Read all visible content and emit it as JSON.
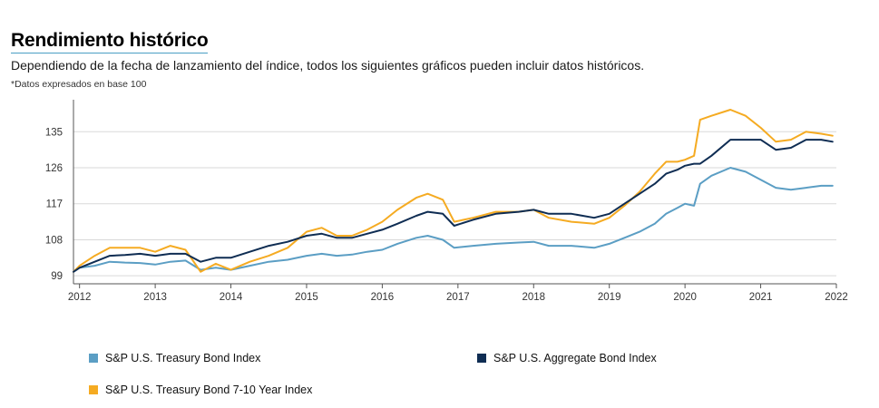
{
  "header": {
    "title": "Rendimiento histórico",
    "subtitle": "Dependiendo de la fecha de lanzamiento del índice, todos los siguientes gráficos pueden incluir datos históricos.",
    "note": "*Datos expresados en base 100"
  },
  "colors": {
    "treasury": "#5b9ec4",
    "aggregate": "#0f2d53",
    "treasury_7_10": "#f5ab22",
    "grid": "#d9d9d9",
    "axis": "#555555"
  },
  "chart_data": {
    "type": "line",
    "title": "Rendimiento histórico",
    "xlabel": "",
    "ylabel": "",
    "xlim": [
      2011.92,
      2022.0
    ],
    "ylim": [
      97,
      143
    ],
    "y_ticks": [
      99,
      108,
      117,
      126,
      135
    ],
    "x_ticks": [
      2012,
      2013,
      2014,
      2015,
      2016,
      2017,
      2018,
      2019,
      2020,
      2021,
      2022
    ],
    "grid": "horizontal",
    "legend_position": "bottom",
    "series": [
      {
        "name": "S&P U.S. Treasury Bond Index",
        "color": "#5b9ec4",
        "x": [
          2011.92,
          2012.0,
          2012.2,
          2012.4,
          2012.6,
          2012.8,
          2013.0,
          2013.2,
          2013.4,
          2013.6,
          2013.8,
          2014.0,
          2014.25,
          2014.5,
          2014.75,
          2015.0,
          2015.2,
          2015.4,
          2015.6,
          2015.8,
          2016.0,
          2016.2,
          2016.45,
          2016.6,
          2016.8,
          2016.95,
          2017.2,
          2017.5,
          2017.8,
          2018.0,
          2018.2,
          2018.5,
          2018.8,
          2019.0,
          2019.2,
          2019.4,
          2019.6,
          2019.75,
          2019.9,
          2020.0,
          2020.12,
          2020.2,
          2020.35,
          2020.6,
          2020.8,
          2021.0,
          2021.2,
          2021.4,
          2021.6,
          2021.8,
          2021.95
        ],
        "values": [
          100,
          101,
          101.5,
          102.5,
          102.3,
          102.2,
          101.8,
          102.5,
          102.8,
          100.5,
          101,
          100.5,
          101.5,
          102.5,
          103,
          104,
          104.5,
          104,
          104.3,
          105,
          105.5,
          107,
          108.5,
          109,
          108,
          106,
          106.5,
          107,
          107.3,
          107.5,
          106.5,
          106.5,
          106,
          107,
          108.5,
          110,
          112,
          114.5,
          116,
          117,
          116.5,
          122,
          124,
          126,
          125,
          123,
          121,
          120.5,
          121,
          121.5,
          121.5
        ]
      },
      {
        "name": "S&P U.S. Aggregate Bond Index",
        "color": "#0f2d53",
        "x": [
          2011.92,
          2012.0,
          2012.2,
          2012.4,
          2012.6,
          2012.8,
          2013.0,
          2013.2,
          2013.4,
          2013.6,
          2013.8,
          2014.0,
          2014.25,
          2014.5,
          2014.75,
          2015.0,
          2015.2,
          2015.4,
          2015.6,
          2015.8,
          2016.0,
          2016.2,
          2016.45,
          2016.6,
          2016.8,
          2016.95,
          2017.2,
          2017.5,
          2017.8,
          2018.0,
          2018.2,
          2018.5,
          2018.8,
          2019.0,
          2019.2,
          2019.4,
          2019.6,
          2019.75,
          2019.9,
          2020.0,
          2020.12,
          2020.2,
          2020.35,
          2020.6,
          2020.8,
          2021.0,
          2021.2,
          2021.4,
          2021.6,
          2021.8,
          2021.95
        ],
        "values": [
          100,
          101,
          102.5,
          104,
          104.2,
          104.5,
          104,
          104.5,
          104.5,
          102.5,
          103.5,
          103.5,
          105,
          106.5,
          107.5,
          109,
          109.5,
          108.5,
          108.5,
          109.5,
          110.5,
          112,
          114,
          115,
          114.5,
          111.5,
          113,
          114.5,
          115,
          115.5,
          114.5,
          114.5,
          113.5,
          114.5,
          117,
          119.5,
          122,
          124.5,
          125.5,
          126.5,
          127,
          127,
          129,
          133,
          133,
          133,
          130.5,
          131,
          133,
          133,
          132.5
        ]
      },
      {
        "name": "S&P U.S. Treasury Bond 7-10 Year Index",
        "color": "#f5ab22",
        "x": [
          2011.92,
          2012.0,
          2012.2,
          2012.4,
          2012.6,
          2012.8,
          2013.0,
          2013.2,
          2013.4,
          2013.6,
          2013.8,
          2014.0,
          2014.25,
          2014.5,
          2014.75,
          2015.0,
          2015.2,
          2015.4,
          2015.6,
          2015.8,
          2016.0,
          2016.2,
          2016.45,
          2016.6,
          2016.8,
          2016.95,
          2017.2,
          2017.5,
          2017.8,
          2018.0,
          2018.2,
          2018.5,
          2018.8,
          2019.0,
          2019.2,
          2019.4,
          2019.6,
          2019.75,
          2019.9,
          2020.0,
          2020.12,
          2020.2,
          2020.35,
          2020.6,
          2020.8,
          2021.0,
          2021.2,
          2021.4,
          2021.6,
          2021.8,
          2021.95
        ],
        "values": [
          100,
          101.5,
          104,
          106,
          106,
          106,
          105,
          106.5,
          105.5,
          100,
          102,
          100.5,
          102.5,
          104,
          106,
          110,
          111,
          109,
          109,
          110.5,
          112.5,
          115.5,
          118.5,
          119.5,
          118,
          112.5,
          113.5,
          115,
          115,
          115.5,
          113.5,
          112.5,
          112,
          113.5,
          116.5,
          120,
          124.5,
          127.5,
          127.5,
          128,
          129,
          138,
          139,
          140.5,
          139,
          136,
          132.5,
          133,
          135,
          134.5,
          134
        ]
      }
    ]
  },
  "legend": [
    {
      "label": "S&P U.S. Treasury Bond Index",
      "color": "#5b9ec4"
    },
    {
      "label": "S&P U.S. Aggregate Bond Index",
      "color": "#0f2d53"
    },
    {
      "label": "S&P U.S. Treasury Bond 7-10 Year Index",
      "color": "#f5ab22"
    }
  ]
}
